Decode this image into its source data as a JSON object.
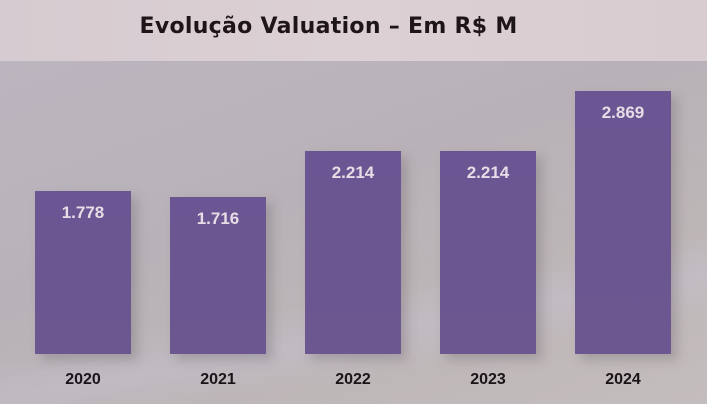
{
  "title": "Evolução Valuation – Em R$ M",
  "colors": {
    "bar": "#6b5592",
    "bar_label": "#e6dde6",
    "title": "#1e1518",
    "background": "#b9b3b8"
  },
  "chart_data": {
    "type": "bar",
    "title": "Evolução Valuation – Em R$ M",
    "xlabel": "",
    "ylabel": "",
    "categories": [
      "2020",
      "2021",
      "2022",
      "2023",
      "2024"
    ],
    "values": [
      1778,
      1716,
      2214,
      2214,
      2869
    ],
    "value_labels": [
      "1.778",
      "1.716",
      "2.214",
      "2.214",
      "2.869"
    ],
    "ylim": [
      0,
      3000
    ],
    "grid": false,
    "legend": false,
    "data_labels": "inside-top"
  }
}
